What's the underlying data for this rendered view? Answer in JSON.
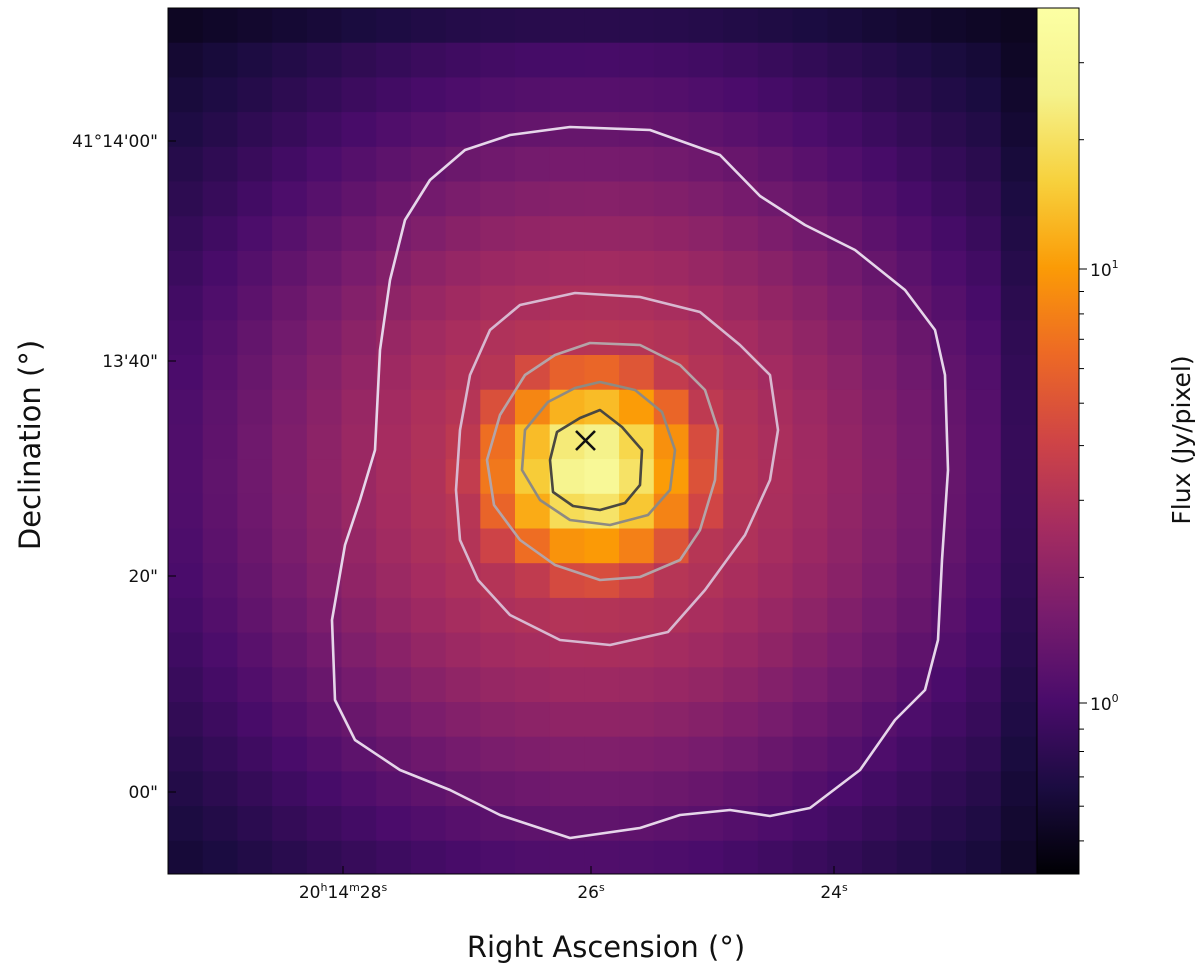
{
  "chart_data": {
    "type": "heatmap",
    "xlabel": "Right Ascension (°)",
    "ylabel": "Declination (°)",
    "colorbar": {
      "label": "Flux (Jy/pixel)",
      "scale": "log",
      "colormap": "inferno",
      "range": [
        0.42,
        40
      ],
      "ticks": [
        {
          "value": 1,
          "base": "10",
          "exp": "0"
        },
        {
          "value": 10,
          "base": "10",
          "exp": "1"
        }
      ]
    },
    "x_ticks": [
      {
        "value": "20h14m28s",
        "parts": [
          [
            "20",
            "h"
          ],
          [
            "14",
            "m"
          ],
          [
            "28",
            "s"
          ]
        ]
      },
      {
        "value": "26s",
        "parts": [
          [
            "26",
            "s"
          ]
        ]
      },
      {
        "value": "24s",
        "parts": [
          [
            "24",
            "s"
          ]
        ]
      }
    ],
    "y_ticks": [
      "41°14'00\"",
      "13'40\"",
      "20\"",
      "00\""
    ],
    "grid": false,
    "source_marker": {
      "symbol": "x",
      "label": "source position"
    },
    "contour_levels": 4
  }
}
